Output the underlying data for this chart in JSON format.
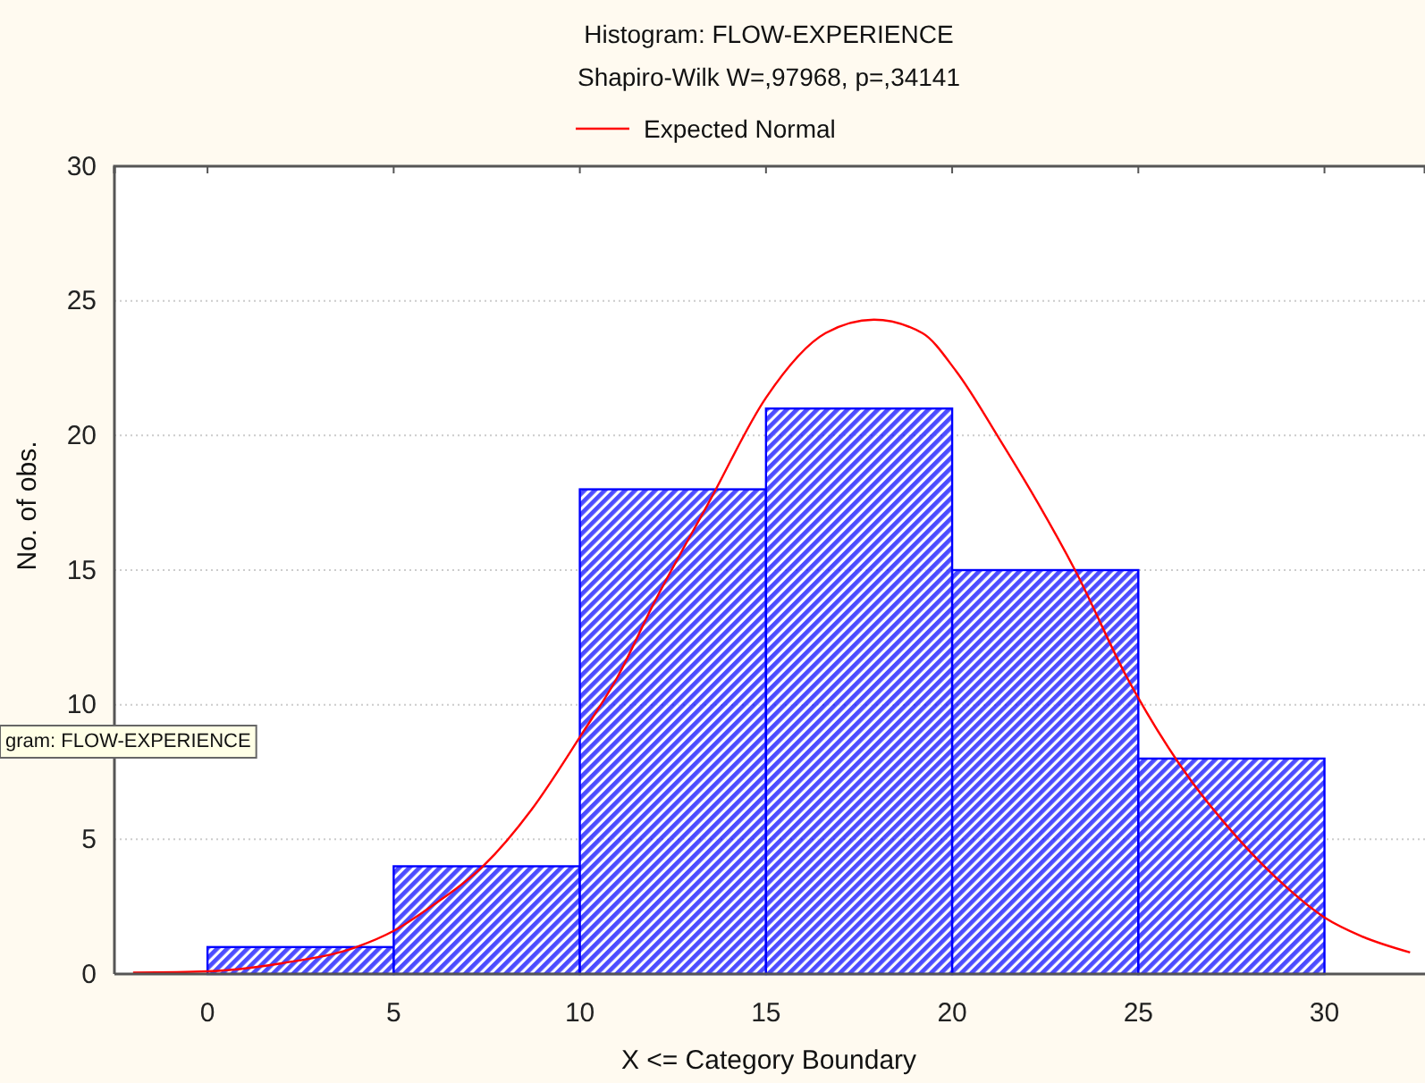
{
  "chart_data": {
    "type": "histogram",
    "title": "Histogram: FLOW-EXPERIENCE",
    "subtitle": "Shapiro-Wilk W=,97968, p=,34141",
    "xlabel": "X <= Category Boundary",
    "ylabel": "No. of obs.",
    "bins": [
      0,
      5,
      10,
      15,
      20,
      25,
      30
    ],
    "values": [
      1,
      4,
      18,
      21,
      15,
      8
    ],
    "color": "#0000ff",
    "series": [
      {
        "type": "line",
        "name": "Expected Normal",
        "color": "#ff0000",
        "x": [
          -2,
          0,
          2,
          4,
          5,
          6,
          7.4,
          8.7,
          10,
          11,
          12,
          13.5,
          15,
          16.6,
          17.9,
          19.2,
          20.1,
          21.3,
          22.3,
          23.3,
          24.7,
          26.1,
          27.7,
          29,
          30,
          31,
          32.3
        ],
        "values": [
          0.05,
          0.1,
          0.4,
          1,
          1.6,
          2.5,
          4,
          6.1,
          8.8,
          11,
          13.8,
          17.6,
          21.4,
          23.8,
          24.3,
          23.8,
          22.4,
          19.8,
          17.5,
          15,
          11,
          7.8,
          5,
          3.2,
          2.1,
          1.4,
          0.8
        ]
      }
    ],
    "xlim": [
      -2.5,
      32.7
    ],
    "ylim": [
      0,
      30
    ],
    "xticks": [
      0,
      5,
      10,
      15,
      20,
      25,
      30
    ],
    "yticks": [
      0,
      5,
      10,
      15,
      20,
      25,
      30
    ],
    "grid": "y",
    "legend": "top",
    "annotations": [
      "gram: FLOW-EXPERIENCE"
    ]
  }
}
